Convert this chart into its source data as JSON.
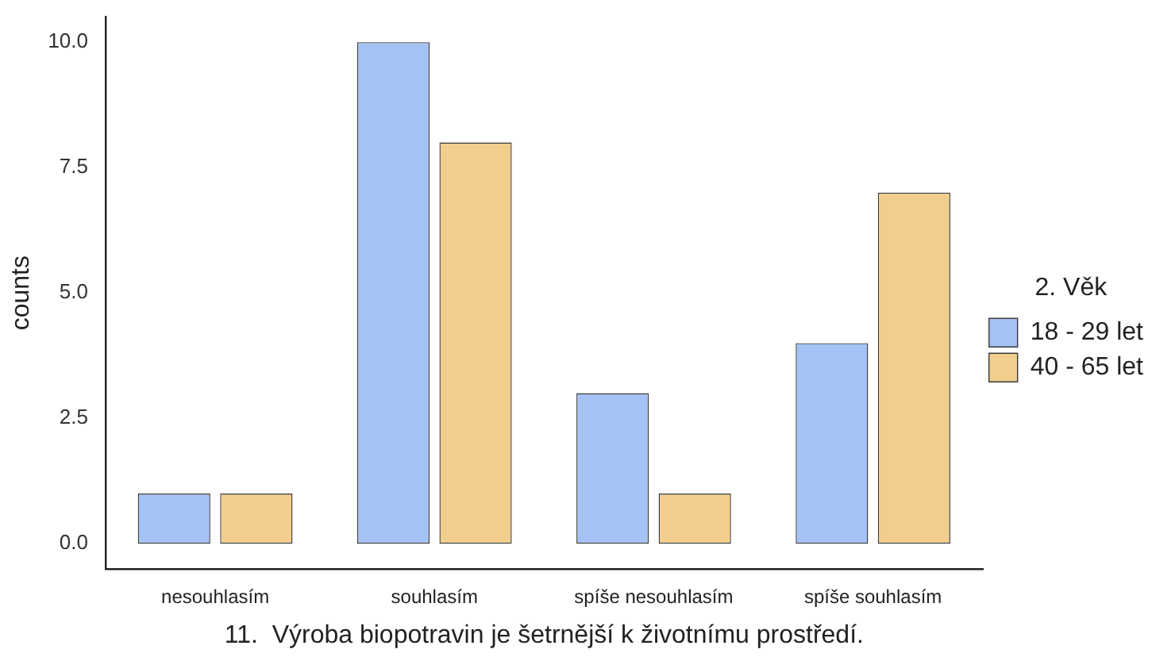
{
  "chart_data": {
    "type": "bar",
    "xlabel": "11.  Výroba biopotravin je šetrnější k životnímu prostředí.",
    "ylabel": "counts",
    "legend_title": "2. Věk",
    "legend": "right",
    "categories": [
      "nesouhlasím",
      "souhlasím",
      "spíše nesouhlasím",
      "spíše souhlasím"
    ],
    "series": [
      {
        "name": "18 - 29 let",
        "color": "#a4c2f4",
        "values": [
          1,
          10,
          3,
          4
        ]
      },
      {
        "name": "40 - 65 let",
        "color": "#f1cd8e",
        "values": [
          1,
          8,
          1,
          7
        ]
      }
    ],
    "ylim": [
      -0.5,
      10.5
    ],
    "yticks": [
      {
        "value": 0,
        "label": "0.0"
      },
      {
        "value": 2.5,
        "label": "2.5"
      },
      {
        "value": 5,
        "label": "5.0"
      },
      {
        "value": 7.5,
        "label": "7.5"
      },
      {
        "value": 10,
        "label": "10.0"
      }
    ],
    "grid": false
  }
}
